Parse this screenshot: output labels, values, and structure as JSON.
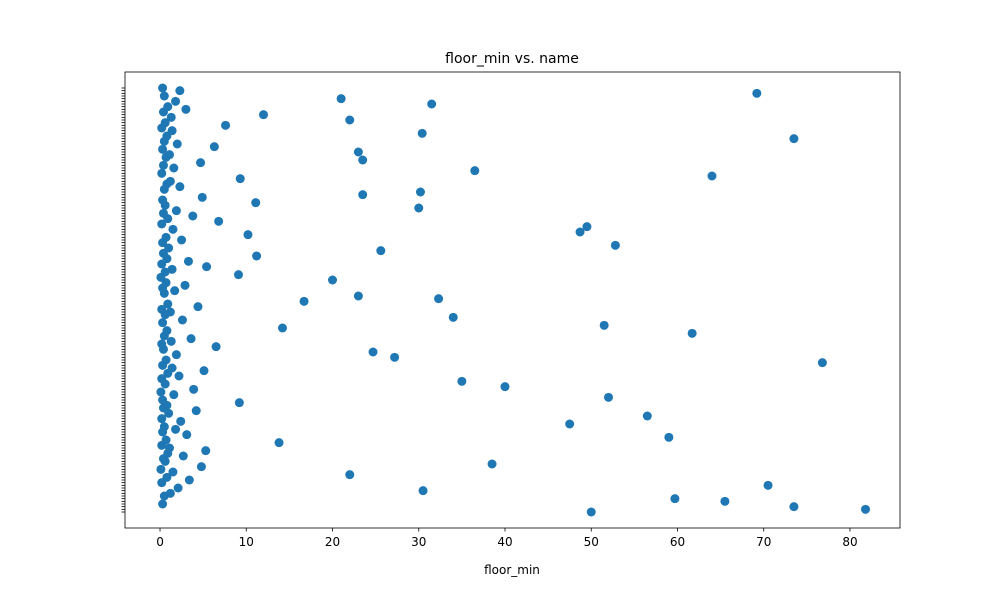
{
  "chart_data": {
    "type": "scatter",
    "title": "floor_min vs. name",
    "x_label": "floor_min",
    "color": "#1f77b4",
    "categories": [
      null,
      null,
      null,
      null,
      null,
      null,
      null,
      null,
      null,
      null,
      null,
      null,
      null,
      null,
      null,
      null,
      null,
      null,
      null,
      null,
      null,
      null,
      null,
      null,
      null,
      null,
      null,
      null,
      null,
      null,
      null,
      null,
      null,
      null,
      null,
      null,
      null,
      null,
      null,
      null,
      null,
      null,
      null,
      null,
      null,
      null,
      null,
      null,
      null,
      null,
      null,
      null,
      null,
      null,
      null,
      null,
      null,
      null,
      null,
      null,
      null,
      null,
      null,
      null,
      null,
      null,
      null,
      null,
      null,
      null,
      null,
      null,
      null,
      null,
      null,
      null,
      null,
      null,
      null,
      null,
      null,
      null,
      null,
      null,
      null,
      null,
      null,
      null,
      null,
      null,
      null,
      null,
      null,
      null,
      null,
      null,
      null,
      null,
      null,
      null,
      null,
      null,
      null,
      null,
      null,
      null,
      null,
      null,
      null,
      null,
      null,
      null,
      null,
      null,
      null,
      null,
      null,
      null,
      null,
      null,
      null,
      null,
      null,
      null,
      null,
      null,
      null,
      null,
      null,
      null,
      null,
      null,
      null,
      null,
      null,
      null,
      null,
      null,
      null,
      null,
      null,
      null,
      null,
      null,
      null,
      null,
      null,
      null,
      null,
      null,
      null,
      null,
      null,
      null,
      null,
      null,
      null,
      null,
      null,
      null
    ],
    "values": [
      50,
      81.8,
      73.5,
      0.3,
      65.5,
      59.7,
      0.5,
      1.2,
      30.5,
      2.1,
      70.5,
      0.2,
      3.4,
      0.8,
      22,
      1.5,
      0.1,
      4.8,
      38.5,
      0.6,
      0.4,
      2.7,
      0.9,
      5.3,
      1.1,
      0.2,
      13.8,
      0.7,
      59,
      3.1,
      0.3,
      1.8,
      0.5,
      47.5,
      2.4,
      0.2,
      56.5,
      1.0,
      4.2,
      0.4,
      0.8,
      9.2,
      0.3,
      52,
      1.6,
      0.1,
      3.9,
      40,
      0.6,
      35,
      0.2,
      2.2,
      0.9,
      5.1,
      1.4,
      0.3,
      76.8,
      0.7,
      27.2,
      1.9,
      24.7,
      0.4,
      6.5,
      0.2,
      1.3,
      3.6,
      0.5,
      61.7,
      0.8,
      14.2,
      51.5,
      0.3,
      2.6,
      34,
      0.6,
      1.2,
      0.2,
      4.4,
      0.9,
      16.7,
      32.3,
      23,
      0.5,
      1.7,
      0.3,
      2.9,
      0.7,
      20,
      0.1,
      9.1,
      0.6,
      1.4,
      5.4,
      0.2,
      3.3,
      0.8,
      11.2,
      0.4,
      25.6,
      1.0,
      52.8,
      0.3,
      2.5,
      0.7,
      10.2,
      48.7,
      1.5,
      49.5,
      0.2,
      6.8,
      0.9,
      3.8,
      0.4,
      1.9,
      30,
      0.6,
      11.1,
      0.3,
      4.9,
      23.5,
      30.2,
      0.5,
      2.3,
      0.8,
      1.2,
      9.3,
      64,
      0.2,
      36.5,
      1.6,
      0.4,
      4.7,
      23.5,
      0.7,
      1.1,
      23,
      0.3,
      6.3,
      2.0,
      0.5,
      73.5,
      0.8,
      30.4,
      1.4,
      0.2,
      7.6,
      0.6,
      22,
      1.3,
      12,
      0.4,
      3.0,
      0.9,
      31.5,
      1.8,
      21,
      0.5,
      69.2,
      2.3,
      0.3
    ],
    "xlim": [
      -4.06,
      85.8
    ],
    "xticks": [
      0,
      10,
      20,
      30,
      40,
      50,
      60,
      70,
      80
    ]
  }
}
